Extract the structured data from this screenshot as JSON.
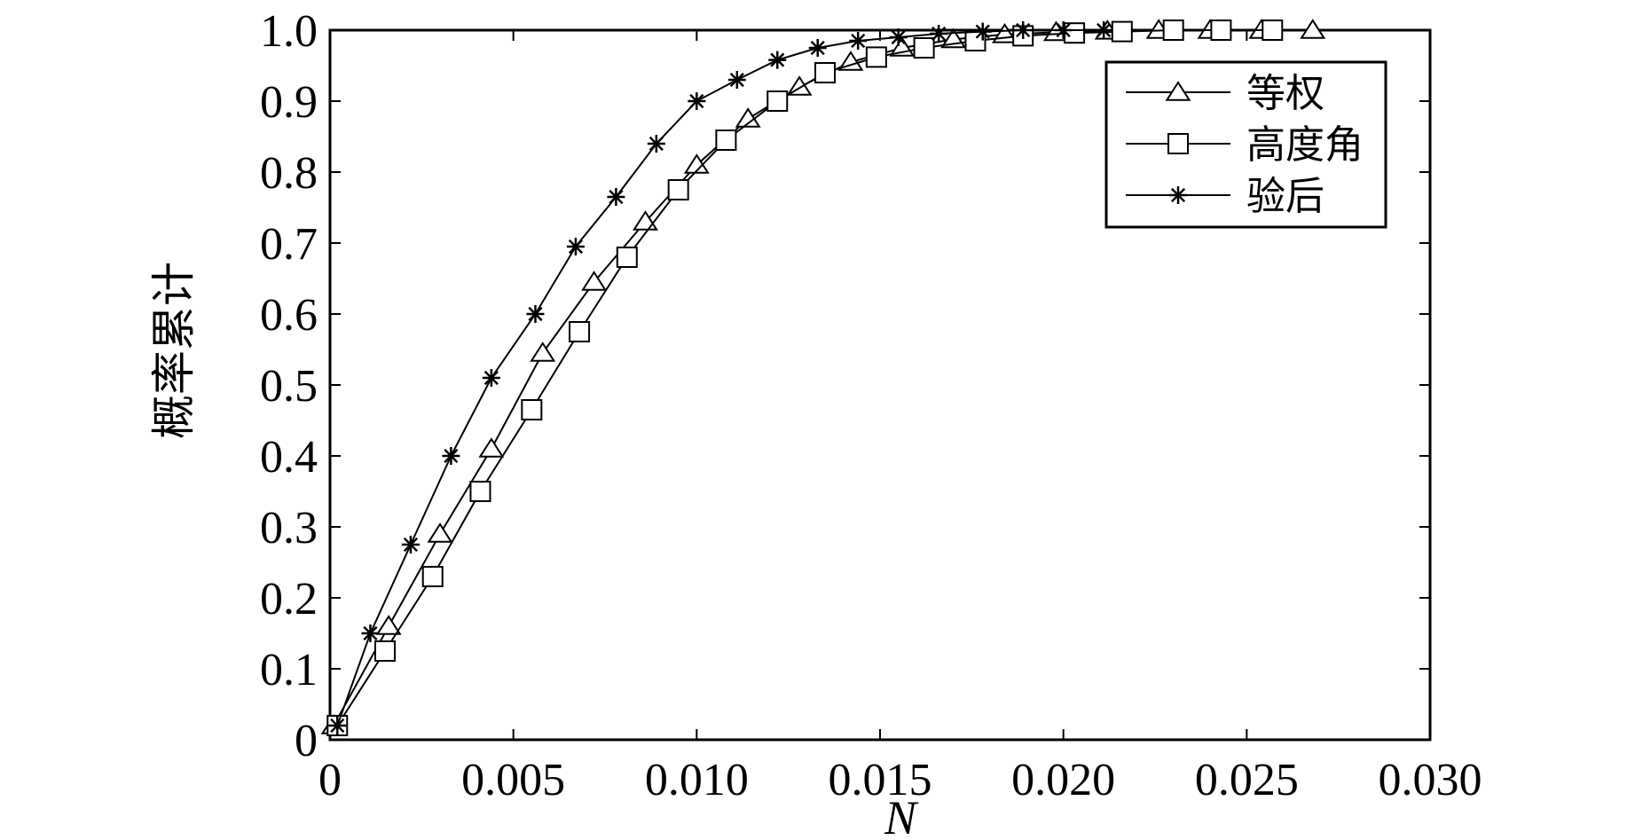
{
  "chart_data": {
    "type": "line",
    "title": "",
    "xlabel": "N",
    "ylabel": "概率累计",
    "xlim": [
      0,
      0.03
    ],
    "ylim": [
      0,
      1.0
    ],
    "x_ticks": [
      0,
      0.005,
      0.01,
      0.015,
      0.02,
      0.025,
      0.03
    ],
    "x_tick_labels": [
      "0",
      "0.005",
      "0.010",
      "0.015",
      "0.020",
      "0.025",
      "0.030"
    ],
    "y_ticks": [
      0,
      0.1,
      0.2,
      0.3,
      0.4,
      0.5,
      0.6,
      0.7,
      0.8,
      0.9,
      1.0
    ],
    "y_tick_labels": [
      "0",
      "0.1",
      "0.2",
      "0.3",
      "0.4",
      "0.5",
      "0.6",
      "0.7",
      "0.8",
      "0.9",
      "1.0"
    ],
    "grid": false,
    "legend_position": "top-right",
    "series": [
      {
        "name": "等权",
        "marker": "triangle",
        "x": [
          0.0001,
          0.0016,
          0.003,
          0.0044,
          0.0058,
          0.0072,
          0.0086,
          0.01,
          0.0114,
          0.0128,
          0.0142,
          0.0156,
          0.017,
          0.0184,
          0.0198,
          0.0212,
          0.0226,
          0.024,
          0.0254,
          0.0268
        ],
        "y": [
          0.02,
          0.16,
          0.29,
          0.41,
          0.545,
          0.645,
          0.73,
          0.81,
          0.875,
          0.92,
          0.955,
          0.975,
          0.987,
          0.994,
          0.997,
          0.999,
          1.0,
          1.0,
          1.0,
          1.0
        ]
      },
      {
        "name": "高度角",
        "marker": "square",
        "x": [
          0.0002,
          0.0015,
          0.0028,
          0.0041,
          0.0055,
          0.0068,
          0.0081,
          0.0095,
          0.0108,
          0.0122,
          0.0135,
          0.0149,
          0.0162,
          0.0176,
          0.0189,
          0.0203,
          0.0216,
          0.023,
          0.0243,
          0.0257
        ],
        "y": [
          0.02,
          0.125,
          0.23,
          0.35,
          0.465,
          0.575,
          0.68,
          0.775,
          0.845,
          0.9,
          0.94,
          0.962,
          0.975,
          0.985,
          0.992,
          0.996,
          0.998,
          1.0,
          1.0,
          1.0
        ]
      },
      {
        "name": "验后",
        "marker": "star",
        "x": [
          0.0002,
          0.0011,
          0.0022,
          0.0033,
          0.0044,
          0.0056,
          0.0067,
          0.0078,
          0.0089,
          0.01,
          0.0111,
          0.0122,
          0.0133,
          0.0144,
          0.0155,
          0.0166,
          0.0178,
          0.0189,
          0.02,
          0.0211
        ],
        "y": [
          0.02,
          0.15,
          0.275,
          0.4,
          0.51,
          0.6,
          0.695,
          0.765,
          0.84,
          0.9,
          0.93,
          0.958,
          0.975,
          0.985,
          0.99,
          0.995,
          0.998,
          1.0,
          1.0,
          1.0
        ]
      }
    ]
  }
}
